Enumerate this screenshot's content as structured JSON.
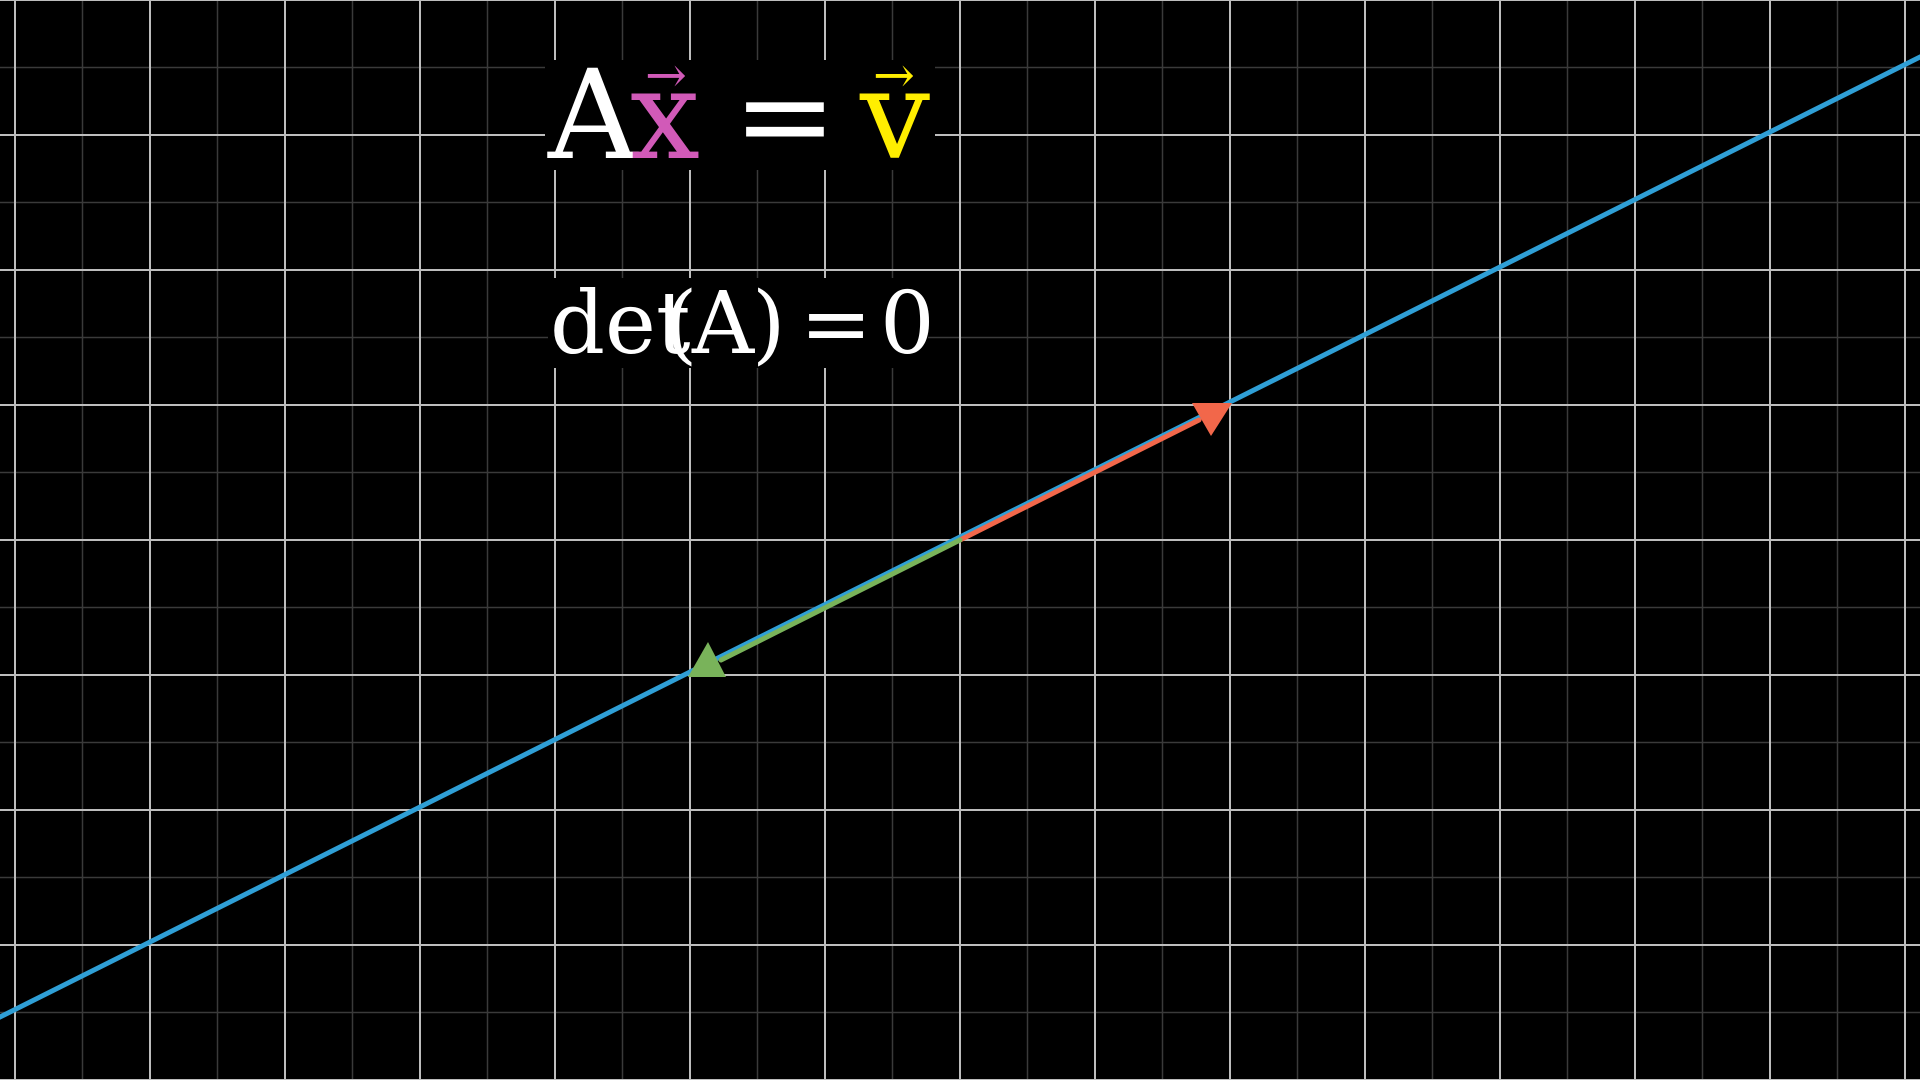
{
  "equation": {
    "matrix": "A",
    "input_vector": "x",
    "equals": "=",
    "output_vector": "v",
    "vector_arrow": "→"
  },
  "determinant": {
    "func": "det",
    "open_paren": "(",
    "arg": "A",
    "close_paren": ")",
    "equals": "=",
    "value": "0"
  },
  "colors": {
    "background": "#000000",
    "grid_major": "#bdbdbd",
    "grid_minor": "#3a3a3a",
    "line": "#2f9fd6",
    "input_vector_color": "#d15ab8",
    "output_vector_color": "#ffee00",
    "text": "#ffffff",
    "red_vector": "#f2674a",
    "green_vector": "#79b35a"
  },
  "icons": [
    "arrow-head-icon"
  ]
}
